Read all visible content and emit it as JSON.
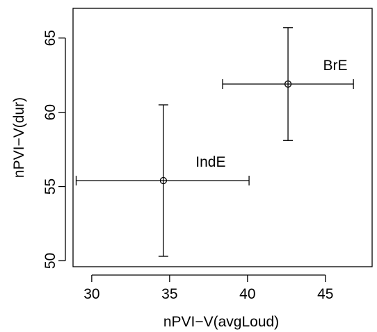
{
  "chart_data": {
    "type": "scatter",
    "title": "",
    "xlabel": "nPVI−V(avgLoud)",
    "ylabel": "nPVI−V(dur)",
    "xlim": [
      28.8,
      48.0
    ],
    "ylim": [
      49.6,
      67.0
    ],
    "x_ticks": [
      30,
      35,
      40,
      45
    ],
    "y_ticks": [
      50,
      55,
      60,
      65
    ],
    "grid": false,
    "legend": "none",
    "points": [
      {
        "label": "IndE",
        "x": 34.6,
        "y": 55.4,
        "x_err": [
          29.0,
          40.1
        ],
        "y_err": [
          50.3,
          60.5
        ]
      },
      {
        "label": "BrE",
        "x": 42.6,
        "y": 61.9,
        "x_err": [
          38.4,
          46.8
        ],
        "y_err": [
          58.1,
          65.7
        ]
      }
    ]
  }
}
